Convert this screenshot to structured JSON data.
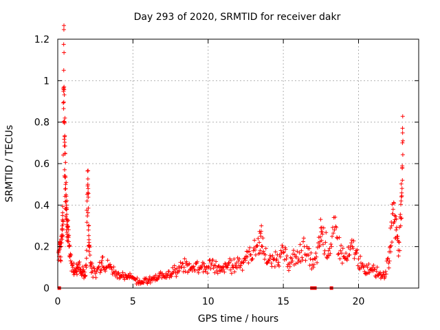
{
  "chart_data": {
    "type": "scatter",
    "title": "Day 293 of 2020, SRMTID for receiver dakr",
    "xlabel": "GPS time / hours",
    "ylabel": "SRMTID / TECUs",
    "xlim": [
      0,
      24
    ],
    "ylim": [
      0,
      1.2
    ],
    "xticks": [
      "0",
      "5",
      "10",
      "15",
      "20"
    ],
    "yticks": [
      "0",
      "0.2",
      "0.4",
      "0.6",
      "0.8",
      "1",
      "1.2"
    ],
    "grid": true,
    "marker": "plus",
    "marker_color": "#ff0000",
    "series": [
      {
        "name": "SRMTID",
        "points": [
          [
            0.05,
            0.17
          ],
          [
            0.1,
            0.2
          ],
          [
            0.15,
            0.22
          ],
          [
            0.2,
            0.15
          ],
          [
            0.25,
            0.25
          ],
          [
            0.3,
            0.3
          ],
          [
            0.32,
            0.35
          ],
          [
            0.35,
            0.32
          ],
          [
            0.38,
            0.96
          ],
          [
            0.4,
            1.05
          ],
          [
            0.42,
            0.97
          ],
          [
            0.44,
            0.8
          ],
          [
            0.46,
            0.73
          ],
          [
            0.48,
            0.65
          ],
          [
            0.5,
            0.54
          ],
          [
            0.52,
            0.5
          ],
          [
            0.55,
            0.45
          ],
          [
            0.58,
            0.4
          ],
          [
            0.6,
            0.38
          ],
          [
            0.62,
            0.33
          ],
          [
            0.65,
            0.3
          ],
          [
            0.7,
            0.25
          ],
          [
            0.75,
            0.2
          ],
          [
            0.8,
            0.15
          ],
          [
            0.9,
            0.12
          ],
          [
            1.0,
            0.1
          ],
          [
            1.1,
            0.09
          ],
          [
            1.2,
            0.08
          ],
          [
            1.3,
            0.1
          ],
          [
            1.4,
            0.12
          ],
          [
            1.5,
            0.09
          ],
          [
            1.6,
            0.07
          ],
          [
            1.7,
            0.08
          ],
          [
            1.8,
            0.06
          ],
          [
            1.9,
            0.1
          ],
          [
            1.95,
            0.42
          ],
          [
            2.0,
            0.5
          ],
          [
            2.02,
            0.48
          ],
          [
            2.05,
            0.3
          ],
          [
            2.08,
            0.22
          ],
          [
            2.1,
            0.2
          ],
          [
            2.2,
            0.12
          ],
          [
            2.3,
            0.08
          ],
          [
            2.5,
            0.07
          ],
          [
            2.7,
            0.1
          ],
          [
            2.9,
            0.12
          ],
          [
            3.0,
            0.15
          ],
          [
            3.2,
            0.1
          ],
          [
            3.4,
            0.11
          ],
          [
            3.6,
            0.09
          ],
          [
            3.8,
            0.08
          ],
          [
            4.0,
            0.07
          ],
          [
            4.2,
            0.06
          ],
          [
            4.4,
            0.05
          ],
          [
            4.6,
            0.05
          ],
          [
            4.8,
            0.07
          ],
          [
            5.0,
            0.05
          ],
          [
            5.2,
            0.04
          ],
          [
            5.4,
            0.03
          ],
          [
            5.6,
            0.03
          ],
          [
            5.8,
            0.04
          ],
          [
            6.0,
            0.03
          ],
          [
            6.2,
            0.04
          ],
          [
            6.4,
            0.05
          ],
          [
            6.6,
            0.04
          ],
          [
            6.8,
            0.06
          ],
          [
            7.0,
            0.06
          ],
          [
            7.2,
            0.07
          ],
          [
            7.4,
            0.08
          ],
          [
            7.6,
            0.07
          ],
          [
            7.8,
            0.09
          ],
          [
            8.0,
            0.08
          ],
          [
            8.2,
            0.1
          ],
          [
            8.4,
            0.1
          ],
          [
            8.6,
            0.11
          ],
          [
            8.8,
            0.09
          ],
          [
            9.0,
            0.1
          ],
          [
            9.2,
            0.12
          ],
          [
            9.4,
            0.1
          ],
          [
            9.6,
            0.11
          ],
          [
            9.8,
            0.09
          ],
          [
            10.0,
            0.1
          ],
          [
            10.2,
            0.12
          ],
          [
            10.4,
            0.11
          ],
          [
            10.6,
            0.1
          ],
          [
            10.8,
            0.08
          ],
          [
            11.0,
            0.09
          ],
          [
            11.2,
            0.1
          ],
          [
            11.4,
            0.12
          ],
          [
            11.6,
            0.1
          ],
          [
            11.8,
            0.11
          ],
          [
            12.0,
            0.13
          ],
          [
            12.2,
            0.12
          ],
          [
            12.4,
            0.14
          ],
          [
            12.6,
            0.15
          ],
          [
            12.8,
            0.16
          ],
          [
            13.0,
            0.18
          ],
          [
            13.2,
            0.2
          ],
          [
            13.4,
            0.22
          ],
          [
            13.5,
            0.25
          ],
          [
            13.6,
            0.2
          ],
          [
            13.8,
            0.16
          ],
          [
            14.0,
            0.13
          ],
          [
            14.2,
            0.12
          ],
          [
            14.4,
            0.14
          ],
          [
            14.6,
            0.16
          ],
          [
            14.8,
            0.15
          ],
          [
            15.0,
            0.17
          ],
          [
            15.2,
            0.14
          ],
          [
            15.4,
            0.12
          ],
          [
            15.6,
            0.13
          ],
          [
            15.8,
            0.15
          ],
          [
            16.0,
            0.14
          ],
          [
            16.2,
            0.18
          ],
          [
            16.4,
            0.2
          ],
          [
            16.6,
            0.16
          ],
          [
            16.8,
            0.14
          ],
          [
            17.0,
            0.1
          ],
          [
            17.2,
            0.15
          ],
          [
            17.4,
            0.2
          ],
          [
            17.5,
            0.29
          ],
          [
            17.6,
            0.26
          ],
          [
            17.8,
            0.22
          ],
          [
            18.0,
            0.18
          ],
          [
            18.2,
            0.2
          ],
          [
            18.4,
            0.28
          ],
          [
            18.6,
            0.24
          ],
          [
            18.8,
            0.18
          ],
          [
            19.0,
            0.15
          ],
          [
            19.2,
            0.14
          ],
          [
            19.4,
            0.16
          ],
          [
            19.6,
            0.2
          ],
          [
            19.8,
            0.17
          ],
          [
            20.0,
            0.14
          ],
          [
            20.2,
            0.1
          ],
          [
            20.4,
            0.08
          ],
          [
            20.6,
            0.1
          ],
          [
            20.8,
            0.09
          ],
          [
            21.0,
            0.11
          ],
          [
            21.2,
            0.08
          ],
          [
            21.4,
            0.07
          ],
          [
            21.6,
            0.06
          ],
          [
            21.8,
            0.08
          ],
          [
            22.0,
            0.12
          ],
          [
            22.1,
            0.2
          ],
          [
            22.2,
            0.3
          ],
          [
            22.3,
            0.38
          ],
          [
            22.4,
            0.35
          ],
          [
            22.5,
            0.28
          ],
          [
            22.6,
            0.25
          ],
          [
            22.7,
            0.22
          ],
          [
            22.8,
            0.3
          ],
          [
            22.85,
            0.44
          ],
          [
            22.9,
            0.58
          ],
          [
            22.92,
            0.7
          ],
          [
            22.95,
            0.71
          ]
        ]
      }
    ],
    "zero_markers": [
      0.1,
      16.9,
      17.1,
      18.2
    ]
  }
}
